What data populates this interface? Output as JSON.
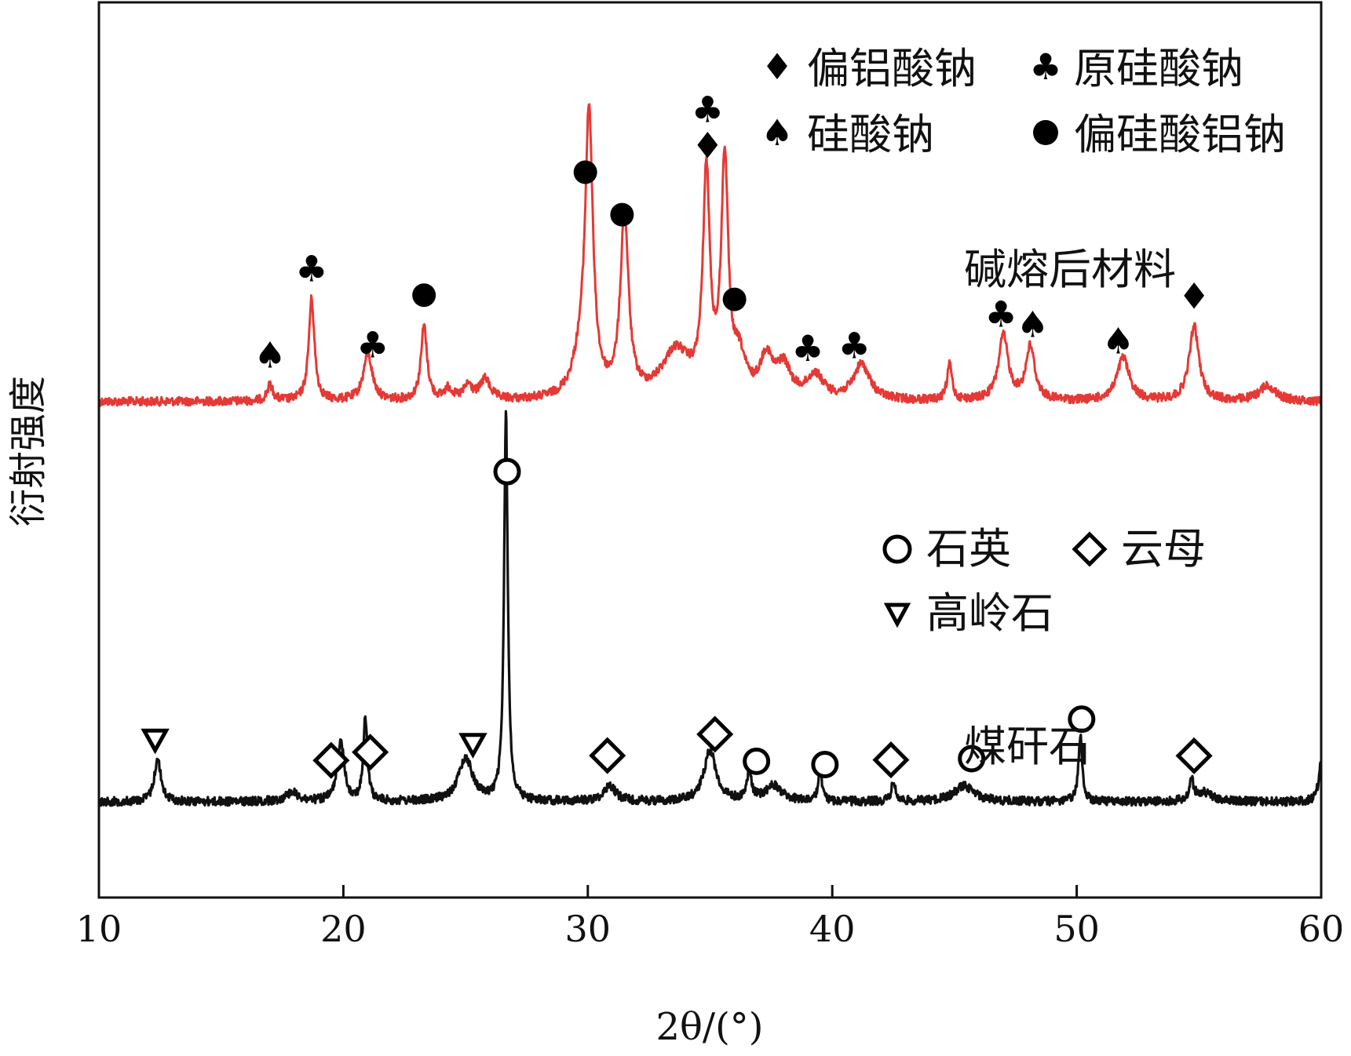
{
  "chart_data": {
    "type": "line",
    "xlabel": "2θ/(°)",
    "ylabel": "衍射强度",
    "xlim": [
      10,
      60
    ],
    "xticks": [
      "10",
      "20",
      "30",
      "40",
      "50",
      "60"
    ],
    "series": [
      {
        "name": "碱熔后材料",
        "color": "#e53935",
        "baseline": 512,
        "peaks": [
          {
            "x": 17.0,
            "y": 20,
            "w": 0.15
          },
          {
            "x": 18.7,
            "y": 130,
            "w": 0.14
          },
          {
            "x": 21.0,
            "y": 60,
            "w": 0.22
          },
          {
            "x": 23.3,
            "y": 95,
            "w": 0.15
          },
          {
            "x": 24.3,
            "y": 14,
            "w": 0.2
          },
          {
            "x": 25.1,
            "y": 18,
            "w": 0.2
          },
          {
            "x": 25.8,
            "y": 26,
            "w": 0.25
          },
          {
            "x": 29.7,
            "y": 40,
            "w": 0.4
          },
          {
            "x": 30.05,
            "y": 350,
            "w": 0.19
          },
          {
            "x": 31.5,
            "y": 230,
            "w": 0.2
          },
          {
            "x": 33.6,
            "y": 60,
            "w": 0.7
          },
          {
            "x": 34.85,
            "y": 275,
            "w": 0.17
          },
          {
            "x": 35.6,
            "y": 295,
            "w": 0.17
          },
          {
            "x": 36.2,
            "y": 45,
            "w": 0.3
          },
          {
            "x": 37.3,
            "y": 50,
            "w": 0.3
          },
          {
            "x": 38.0,
            "y": 40,
            "w": 0.35
          },
          {
            "x": 39.3,
            "y": 30,
            "w": 0.4
          },
          {
            "x": 41.2,
            "y": 45,
            "w": 0.4
          },
          {
            "x": 44.8,
            "y": 45,
            "w": 0.12
          },
          {
            "x": 47.0,
            "y": 82,
            "w": 0.24
          },
          {
            "x": 48.1,
            "y": 68,
            "w": 0.22
          },
          {
            "x": 51.9,
            "y": 55,
            "w": 0.3
          },
          {
            "x": 54.8,
            "y": 95,
            "w": 0.24
          },
          {
            "x": 57.8,
            "y": 20,
            "w": 0.4
          }
        ]
      },
      {
        "name": "煤矸石",
        "color": "#111111",
        "baseline": 1022,
        "peaks": [
          {
            "x": 12.4,
            "y": 55,
            "w": 0.16
          },
          {
            "x": 17.9,
            "y": 12,
            "w": 0.3
          },
          {
            "x": 19.9,
            "y": 75,
            "w": 0.17
          },
          {
            "x": 20.9,
            "y": 105,
            "w": 0.1
          },
          {
            "x": 25.0,
            "y": 55,
            "w": 0.35
          },
          {
            "x": 26.65,
            "y": 495,
            "w": 0.09
          },
          {
            "x": 30.9,
            "y": 20,
            "w": 0.3
          },
          {
            "x": 35.0,
            "y": 65,
            "w": 0.3
          },
          {
            "x": 36.6,
            "y": 35,
            "w": 0.12
          },
          {
            "x": 37.6,
            "y": 20,
            "w": 0.4
          },
          {
            "x": 39.5,
            "y": 45,
            "w": 0.08
          },
          {
            "x": 42.5,
            "y": 25,
            "w": 0.1
          },
          {
            "x": 45.4,
            "y": 20,
            "w": 0.5
          },
          {
            "x": 50.15,
            "y": 85,
            "w": 0.09
          },
          {
            "x": 54.7,
            "y": 25,
            "w": 0.1
          },
          {
            "x": 55.2,
            "y": 12,
            "w": 0.4
          },
          {
            "x": 60.0,
            "y": 50,
            "w": 0.12
          }
        ]
      }
    ],
    "curve_labels": [
      "碱熔后材料",
      "煤矸石"
    ],
    "legend_alkali": [
      {
        "symbol": "diamond",
        "label": "偏铝酸钠"
      },
      {
        "symbol": "club",
        "label": "原硅酸钠"
      },
      {
        "symbol": "spade",
        "label": "硅酸钠"
      },
      {
        "symbol": "dot",
        "label": "偏硅酸铝钠"
      }
    ],
    "legend_raw": [
      {
        "symbol": "circle",
        "label": "石英"
      },
      {
        "symbol": "open-diamond",
        "label": "云母"
      },
      {
        "symbol": "triangle",
        "label": "高岭石"
      }
    ],
    "markers_alkali": [
      {
        "symbol": "spade",
        "x": 17.0
      },
      {
        "symbol": "club",
        "x": 18.7
      },
      {
        "symbol": "club",
        "x": 21.2
      },
      {
        "symbol": "dot",
        "x": 23.3
      },
      {
        "symbol": "dot",
        "x": 29.9
      },
      {
        "symbol": "dot",
        "x": 31.4
      },
      {
        "symbol": "club",
        "x": 34.9
      },
      {
        "symbol": "diamond",
        "x": 34.9
      },
      {
        "symbol": "dot",
        "x": 36.0
      },
      {
        "symbol": "club",
        "x": 39.0
      },
      {
        "symbol": "club",
        "x": 40.9
      },
      {
        "symbol": "club",
        "x": 46.9
      },
      {
        "symbol": "spade",
        "x": 48.2
      },
      {
        "symbol": "spade",
        "x": 51.7
      },
      {
        "symbol": "diamond",
        "x": 54.8
      }
    ],
    "markers_raw": [
      {
        "symbol": "triangle",
        "x": 12.3
      },
      {
        "symbol": "open-diamond",
        "x": 19.5
      },
      {
        "symbol": "open-diamond",
        "x": 21.1
      },
      {
        "symbol": "triangle",
        "x": 25.3
      },
      {
        "symbol": "circle",
        "x": 26.7
      },
      {
        "symbol": "open-diamond",
        "x": 30.8
      },
      {
        "symbol": "open-diamond",
        "x": 35.2
      },
      {
        "symbol": "circle",
        "x": 36.9
      },
      {
        "symbol": "circle",
        "x": 39.7
      },
      {
        "symbol": "open-diamond",
        "x": 42.4
      },
      {
        "symbol": "circle",
        "x": 45.7
      },
      {
        "symbol": "circle",
        "x": 50.2
      },
      {
        "symbol": "open-diamond",
        "x": 54.8
      }
    ]
  }
}
